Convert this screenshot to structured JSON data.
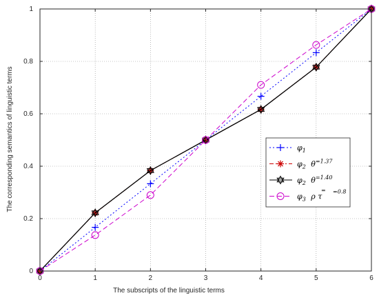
{
  "chart_data": {
    "type": "line",
    "xlabel": "The subscripts of the linguistic terms",
    "ylabel": "The corresponding semantics of linguistic terms",
    "xlim": [
      0,
      6
    ],
    "ylim": [
      0,
      1
    ],
    "x_ticks": [
      "0",
      "1",
      "2",
      "3",
      "4",
      "5",
      "6"
    ],
    "y_ticks": [
      "0",
      "0.2",
      "0.4",
      "0.6",
      "0.8",
      "1"
    ],
    "grid": true,
    "legend_position": "right",
    "x": [
      0,
      1,
      2,
      3,
      4,
      5,
      6
    ],
    "series": [
      {
        "legend": {
          "main": "φ",
          "sub": "1",
          "extra": ""
        },
        "values": [
          0,
          0.1667,
          0.3333,
          0.5,
          0.6667,
          0.8333,
          1
        ],
        "color": "#0000ff",
        "dash": "2,3",
        "marker": "plus"
      },
      {
        "legend": {
          "main": "φ",
          "sub": "2",
          "extra": "θ",
          "extra_sup": "=1.37"
        },
        "values": [
          0,
          0.2216,
          0.3834,
          0.5,
          0.6166,
          0.7784,
          1
        ],
        "color": "#cc0000",
        "dash": "6,3,2,3",
        "marker": "asterisk"
      },
      {
        "legend": {
          "main": "φ",
          "sub": "2",
          "extra": "θ",
          "extra_sup": "=1.40"
        },
        "values": [
          0,
          0.2222,
          0.3833,
          0.5,
          0.6167,
          0.7778,
          1
        ],
        "color": "#000000",
        "dash": "",
        "marker": "hexagram"
      },
      {
        "legend": {
          "main": "φ",
          "sub": "3",
          "extra": "ρ  τ",
          "extra_sup": "=0.8",
          "extra_mid": "="
        },
        "values": [
          0,
          0.1372,
          0.2898,
          0.5,
          0.7102,
          0.8628,
          1
        ],
        "color": "#cc00cc",
        "dash": "7,4",
        "marker": "circle"
      }
    ]
  }
}
